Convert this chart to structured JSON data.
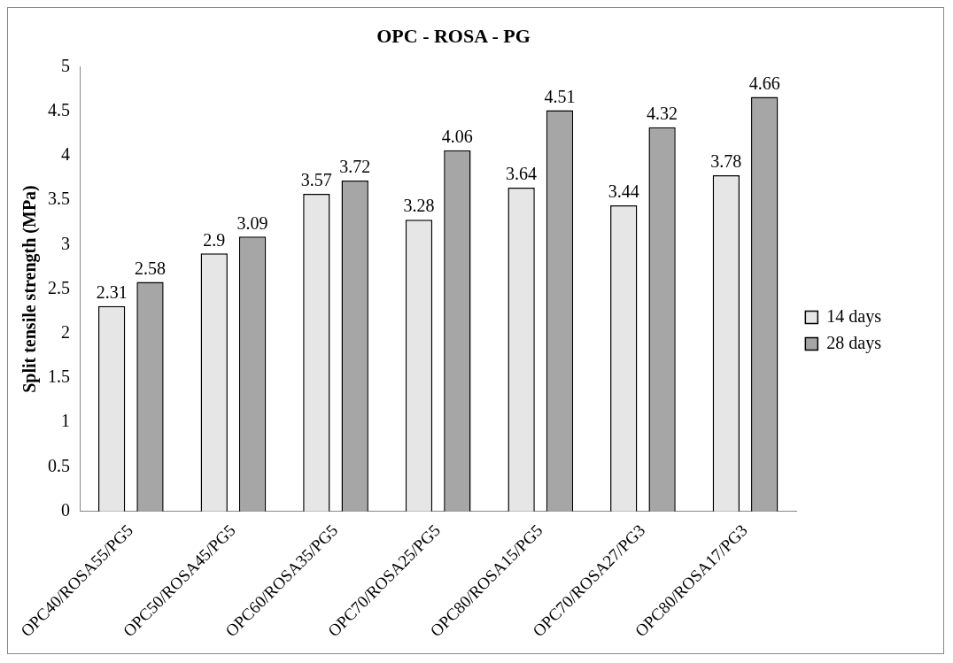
{
  "chart_data": {
    "type": "bar",
    "title": "OPC - ROSA - PG",
    "ylabel": "Split tensile strength (MPa)",
    "categories": [
      "OPC40/ROSA55/PG5",
      "OPC50/ROSA45/PG5",
      "OPC60/ROSA35/PG5",
      "OPC70/ROSA25/PG5",
      "OPC80/ROSA15/PG5",
      "OPC70/ROSA27/PG3",
      "OPC80/ROSA17/PG3"
    ],
    "series": [
      {
        "name": "14 days",
        "color": "#e6e6e6",
        "values": [
          2.31,
          2.9,
          3.57,
          3.28,
          3.64,
          3.44,
          3.78
        ]
      },
      {
        "name": "28 days",
        "color": "#a6a6a6",
        "values": [
          2.58,
          3.09,
          3.72,
          4.06,
          4.51,
          4.32,
          4.66
        ]
      }
    ],
    "ylim": [
      0,
      5
    ],
    "yticks": [
      0,
      0.5,
      1,
      1.5,
      2,
      2.5,
      3,
      3.5,
      4,
      4.5,
      5
    ],
    "grid": false,
    "legend": "right",
    "data_labels": true
  }
}
